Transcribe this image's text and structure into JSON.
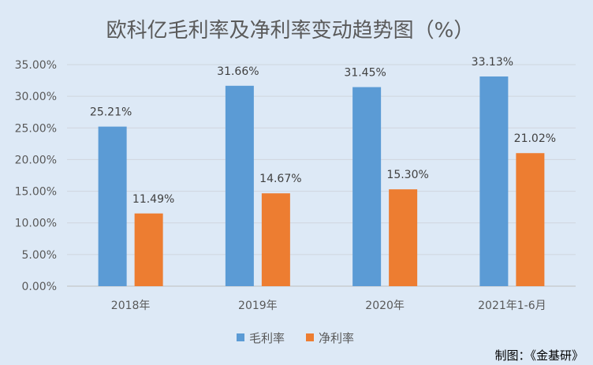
{
  "chart_data": {
    "type": "bar",
    "title": "欧科亿毛利率及净利率变动趋势图（%）",
    "categories": [
      "2018年",
      "2019年",
      "2020年",
      "2021年1-6月"
    ],
    "series": [
      {
        "name": "毛利率",
        "values": [
          25.21,
          31.66,
          31.45,
          33.13
        ],
        "labels": [
          "25.21%",
          "31.66%",
          "31.45%",
          "33.13%"
        ],
        "color": "#5b9bd5"
      },
      {
        "name": "净利率",
        "values": [
          11.49,
          14.67,
          15.3,
          21.02
        ],
        "labels": [
          "11.49%",
          "14.67%",
          "15.30%",
          "21.02%"
        ],
        "color": "#ed7d31"
      }
    ],
    "ylim": [
      0,
      35
    ],
    "yticks": [
      "0.00%",
      "5.00%",
      "10.00%",
      "15.00%",
      "20.00%",
      "25.00%",
      "30.00%",
      "35.00%"
    ],
    "grid": true,
    "legend": "bottom"
  },
  "footer": {
    "credit": "制图：《金基研》"
  }
}
